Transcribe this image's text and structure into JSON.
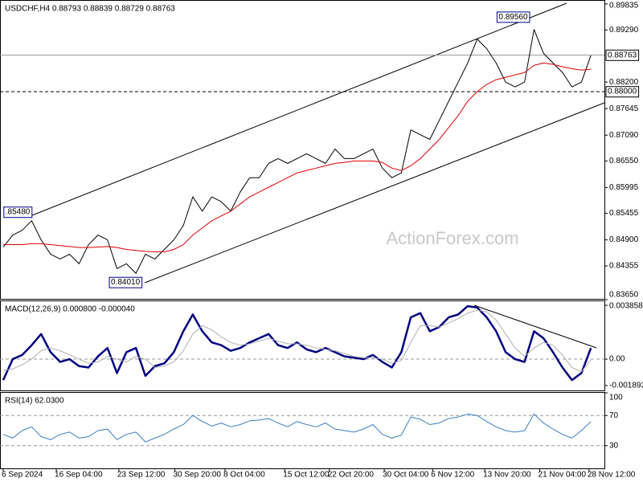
{
  "chart_data": [
    {
      "type": "line",
      "title": "USDCHF,H4  0.88793 0.88839 0.88729 0.88763",
      "watermark": "ActionForex.com",
      "xlim": [
        0,
        63
      ],
      "ylim": [
        0.8365,
        0.899
      ],
      "yticks": [
        0.89835,
        {
          "value": 0.8929,
          "label": "0.89290"
        },
        {
          "value": 0.882,
          "label": "0.88200"
        },
        0.87645,
        {
          "value": 0.8709,
          "label": "0.87090"
        },
        {
          "value": 0.8655,
          "label": "0.86550"
        },
        0.85995,
        0.85455,
        {
          "value": 0.849,
          "label": "0.84900"
        },
        0.84355,
        {
          "value": 0.8365,
          "label": "0.83650"
        }
      ],
      "hlines": [
        {
          "value": 0.88763,
          "label": "0.88763",
          "style": "solid",
          "color": "#999999"
        },
        {
          "value": 0.88,
          "label": "0.88000",
          "style": "dashed",
          "color": "#000000"
        }
      ],
      "annotations": [
        {
          "index": 55.5,
          "value": 0.8956,
          "label": "0.89560"
        },
        {
          "index": 3,
          "value": 0.8548,
          "label": ".85480"
        },
        {
          "index": 14.6,
          "value": 0.8401,
          "label": "0.84010"
        }
      ],
      "series": [
        {
          "name": "USDCHF",
          "color": "#000000",
          "width": 1,
          "values": [
            0.8475,
            0.85,
            0.851,
            0.853,
            0.849,
            0.846,
            0.845,
            0.846,
            0.844,
            0.848,
            0.85,
            0.849,
            0.843,
            0.844,
            0.842,
            0.846,
            0.845,
            0.847,
            0.849,
            0.852,
            0.858,
            0.855,
            0.858,
            0.857,
            0.855,
            0.859,
            0.862,
            0.862,
            0.865,
            0.866,
            0.865,
            0.866,
            0.867,
            0.866,
            0.865,
            0.868,
            0.866,
            0.866,
            0.867,
            0.868,
            0.864,
            0.862,
            0.863,
            0.872,
            0.871,
            0.87,
            0.874,
            0.878,
            0.882,
            0.886,
            0.891,
            0.889,
            0.886,
            0.882,
            0.881,
            0.882,
            0.893,
            0.888,
            0.886,
            0.884,
            0.881,
            0.882,
            0.8876
          ]
        },
        {
          "name": "MA",
          "color": "#e00000",
          "width": 1,
          "values": [
            0.848,
            0.848,
            0.848,
            0.8482,
            0.8482,
            0.848,
            0.8478,
            0.8476,
            0.8474,
            0.8474,
            0.8475,
            0.8476,
            0.8474,
            0.847,
            0.8468,
            0.8466,
            0.8465,
            0.8465,
            0.847,
            0.848,
            0.85,
            0.8515,
            0.853,
            0.854,
            0.855,
            0.8565,
            0.858,
            0.859,
            0.86,
            0.861,
            0.862,
            0.863,
            0.8635,
            0.864,
            0.8645,
            0.865,
            0.8652,
            0.8655,
            0.8655,
            0.8655,
            0.8652,
            0.864,
            0.8635,
            0.8645,
            0.866,
            0.868,
            0.87,
            0.8725,
            0.875,
            0.878,
            0.88,
            0.8815,
            0.8825,
            0.883,
            0.8835,
            0.884,
            0.8855,
            0.886,
            0.8857,
            0.8852,
            0.8848,
            0.8845,
            0.8847
          ]
        }
      ]
    },
    {
      "type": "line",
      "title": "MACD(12,26,9) 0.000800 -0.000040",
      "xlim": [
        0,
        63
      ],
      "ylim": [
        -0.0023,
        0.00415
      ],
      "yticks": [
        0.003858,
        {
          "value": 0,
          "label": "0.00"
        },
        -0.001893
      ],
      "hlines": [
        {
          "value": 0,
          "style": "dashed",
          "color": "#999999"
        }
      ],
      "series": [
        {
          "name": "MACD",
          "color": "#000080",
          "width": 2.5,
          "values": [
            -0.0015,
            0.0,
            0.0003,
            0.001,
            0.0018,
            0.0005,
            -0.0002,
            0.0,
            -0.0005,
            -0.0006,
            0.0002,
            0.0008,
            -0.001,
            0.0005,
            0.0008,
            -0.0012,
            -0.0005,
            -0.0003,
            0.0005,
            0.002,
            0.0032,
            0.002,
            0.0012,
            0.001,
            0.0006,
            0.0008,
            0.0012,
            0.0015,
            0.0018,
            0.001,
            0.0008,
            0.0012,
            0.0007,
            0.0005,
            0.0008,
            0.0005,
            0.0002,
            0.0001,
            0.0,
            0.0003,
            -0.0002,
            -0.0006,
            0.0005,
            0.003,
            0.0033,
            0.002,
            0.0023,
            0.003,
            0.0032,
            0.0038,
            0.0037,
            0.003,
            0.002,
            0.0005,
            0.0,
            -0.0002,
            0.002,
            0.0015,
            0.0005,
            -0.0006,
            -0.0015,
            -0.001,
            0.0008
          ]
        },
        {
          "name": "Signal",
          "color": "#b0b0b0",
          "width": 1,
          "values": [
            -0.0008,
            -0.0007,
            -0.0004,
            0.0,
            0.0006,
            0.0008,
            0.0006,
            0.0003,
            0.0,
            -0.0003,
            -0.0002,
            0.0002,
            0.0,
            -0.0002,
            0.0002,
            0.0,
            -0.0006,
            -0.0005,
            -0.0002,
            0.0006,
            0.0018,
            0.0024,
            0.0021,
            0.0016,
            0.0012,
            0.001,
            0.0011,
            0.0013,
            0.0015,
            0.0013,
            0.0011,
            0.0011,
            0.001,
            0.0008,
            0.0007,
            0.0006,
            0.0004,
            0.0002,
            0.0001,
            0.0001,
            0.0,
            -0.0003,
            -0.0001,
            0.0012,
            0.0024,
            0.0024,
            0.0023,
            0.0026,
            0.0029,
            0.0033,
            0.0035,
            0.0034,
            0.0028,
            0.0018,
            0.0008,
            0.0002,
            0.0008,
            0.0012,
            0.001,
            0.0003,
            -0.0006,
            -0.0009,
            -4e-05
          ]
        }
      ]
    },
    {
      "type": "line",
      "title": "RSI(14) 62.0300",
      "xlim": [
        0,
        63
      ],
      "ylim": [
        0,
        100
      ],
      "yticks": [
        100,
        70,
        30
      ],
      "hlines": [
        {
          "value": 70,
          "style": "dashed",
          "color": "#999999"
        },
        {
          "value": 30,
          "style": "dashed",
          "color": "#999999"
        }
      ],
      "xticks": [
        {
          "value": 0,
          "label": "6 Sep 2024"
        },
        {
          "value": 5.6,
          "label": "16 Sep 04:00"
        },
        {
          "value": 12.2,
          "label": "23 Sep 12:00"
        },
        {
          "value": 18.1,
          "label": "30 Sep 20:00"
        },
        {
          "value": 23.4,
          "label": "8 Oct 04:00"
        },
        {
          "value": 29.7,
          "label": "15 Oct 12:00"
        },
        {
          "value": 34.4,
          "label": "22 Oct 20:00"
        },
        {
          "value": 40.2,
          "label": "30 Oct 04:00"
        },
        {
          "value": 45.3,
          "label": "6 Nov 12:00"
        },
        {
          "value": 50.8,
          "label": "13 Nov 20:00"
        },
        {
          "value": 56.6,
          "label": "21 Nov 04:00"
        },
        {
          "value": 61.8,
          "label": "28 Nov 12:00"
        }
      ],
      "series": [
        {
          "name": "RSI",
          "color": "#3a7fc1",
          "width": 1,
          "values": [
            45,
            40,
            50,
            55,
            42,
            38,
            45,
            48,
            40,
            42,
            50,
            52,
            38,
            45,
            48,
            35,
            40,
            45,
            52,
            58,
            70,
            62,
            56,
            60,
            55,
            58,
            63,
            64,
            66,
            60,
            55,
            62,
            58,
            55,
            60,
            52,
            50,
            48,
            52,
            58,
            45,
            40,
            44,
            68,
            65,
            58,
            60,
            66,
            68,
            72,
            70,
            62,
            55,
            50,
            48,
            50,
            72,
            60,
            52,
            45,
            40,
            50,
            62.03
          ]
        }
      ]
    }
  ]
}
